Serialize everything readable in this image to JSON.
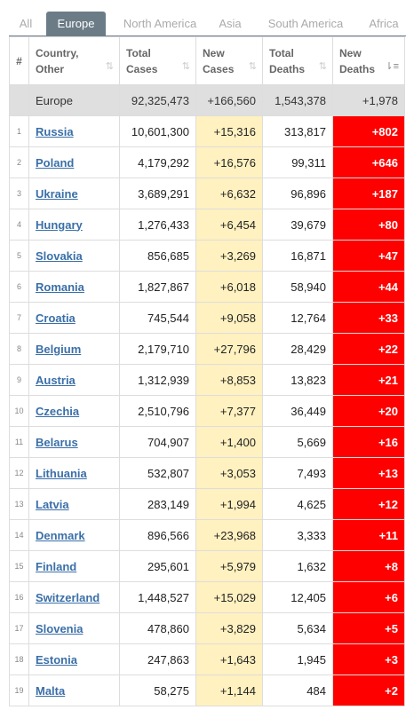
{
  "tabs": [
    {
      "label": "All",
      "active": false
    },
    {
      "label": "Europe",
      "active": true
    },
    {
      "label": "North America",
      "active": false
    },
    {
      "label": "Asia",
      "active": false
    },
    {
      "label": "South America",
      "active": false
    },
    {
      "label": "Africa",
      "active": false
    }
  ],
  "headers": {
    "index": "#",
    "country": "Country, Other",
    "total_cases": "Total Cases",
    "new_cases": "New Cases",
    "total_deaths": "Total Deaths",
    "new_deaths": "New Deaths",
    "sort_icon": "sort-arrows-icon",
    "sort_active_icon": "sort-desc-icon"
  },
  "total_row": {
    "country": "Europe",
    "total_cases": "92,325,473",
    "new_cases": "+166,560",
    "total_deaths": "1,543,378",
    "new_deaths": "+1,978"
  },
  "rows": [
    {
      "idx": "1",
      "country": "Russia",
      "total_cases": "10,601,300",
      "new_cases": "+15,316",
      "total_deaths": "313,817",
      "new_deaths": "+802"
    },
    {
      "idx": "2",
      "country": "Poland",
      "total_cases": "4,179,292",
      "new_cases": "+16,576",
      "total_deaths": "99,311",
      "new_deaths": "+646"
    },
    {
      "idx": "3",
      "country": "Ukraine",
      "total_cases": "3,689,291",
      "new_cases": "+6,632",
      "total_deaths": "96,896",
      "new_deaths": "+187"
    },
    {
      "idx": "4",
      "country": "Hungary",
      "total_cases": "1,276,433",
      "new_cases": "+6,454",
      "total_deaths": "39,679",
      "new_deaths": "+80"
    },
    {
      "idx": "5",
      "country": "Slovakia",
      "total_cases": "856,685",
      "new_cases": "+3,269",
      "total_deaths": "16,871",
      "new_deaths": "+47"
    },
    {
      "idx": "6",
      "country": "Romania",
      "total_cases": "1,827,867",
      "new_cases": "+6,018",
      "total_deaths": "58,940",
      "new_deaths": "+44"
    },
    {
      "idx": "7",
      "country": "Croatia",
      "total_cases": "745,544",
      "new_cases": "+9,058",
      "total_deaths": "12,764",
      "new_deaths": "+33"
    },
    {
      "idx": "8",
      "country": "Belgium",
      "total_cases": "2,179,710",
      "new_cases": "+27,796",
      "total_deaths": "28,429",
      "new_deaths": "+22"
    },
    {
      "idx": "9",
      "country": "Austria",
      "total_cases": "1,312,939",
      "new_cases": "+8,853",
      "total_deaths": "13,823",
      "new_deaths": "+21"
    },
    {
      "idx": "10",
      "country": "Czechia",
      "total_cases": "2,510,796",
      "new_cases": "+7,377",
      "total_deaths": "36,449",
      "new_deaths": "+20"
    },
    {
      "idx": "11",
      "country": "Belarus",
      "total_cases": "704,907",
      "new_cases": "+1,400",
      "total_deaths": "5,669",
      "new_deaths": "+16"
    },
    {
      "idx": "12",
      "country": "Lithuania",
      "total_cases": "532,807",
      "new_cases": "+3,053",
      "total_deaths": "7,493",
      "new_deaths": "+13"
    },
    {
      "idx": "13",
      "country": "Latvia",
      "total_cases": "283,149",
      "new_cases": "+1,994",
      "total_deaths": "4,625",
      "new_deaths": "+12"
    },
    {
      "idx": "14",
      "country": "Denmark",
      "total_cases": "896,566",
      "new_cases": "+23,968",
      "total_deaths": "3,333",
      "new_deaths": "+11"
    },
    {
      "idx": "15",
      "country": "Finland",
      "total_cases": "295,601",
      "new_cases": "+5,979",
      "total_deaths": "1,632",
      "new_deaths": "+8"
    },
    {
      "idx": "16",
      "country": "Switzerland",
      "total_cases": "1,448,527",
      "new_cases": "+15,029",
      "total_deaths": "12,405",
      "new_deaths": "+6"
    },
    {
      "idx": "17",
      "country": "Slovenia",
      "total_cases": "478,860",
      "new_cases": "+3,829",
      "total_deaths": "5,634",
      "new_deaths": "+5"
    },
    {
      "idx": "18",
      "country": "Estonia",
      "total_cases": "247,863",
      "new_cases": "+1,643",
      "total_deaths": "1,945",
      "new_deaths": "+3"
    },
    {
      "idx": "19",
      "country": "Malta",
      "total_cases": "58,275",
      "new_cases": "+1,144",
      "total_deaths": "484",
      "new_deaths": "+2"
    }
  ],
  "colors": {
    "tab_active": "#6b7c87",
    "new_cases_bg": "#fff1c0",
    "new_deaths_bg": "#ff0000",
    "link": "#3a6fa8",
    "total_row_bg": "#dfdfdf"
  }
}
